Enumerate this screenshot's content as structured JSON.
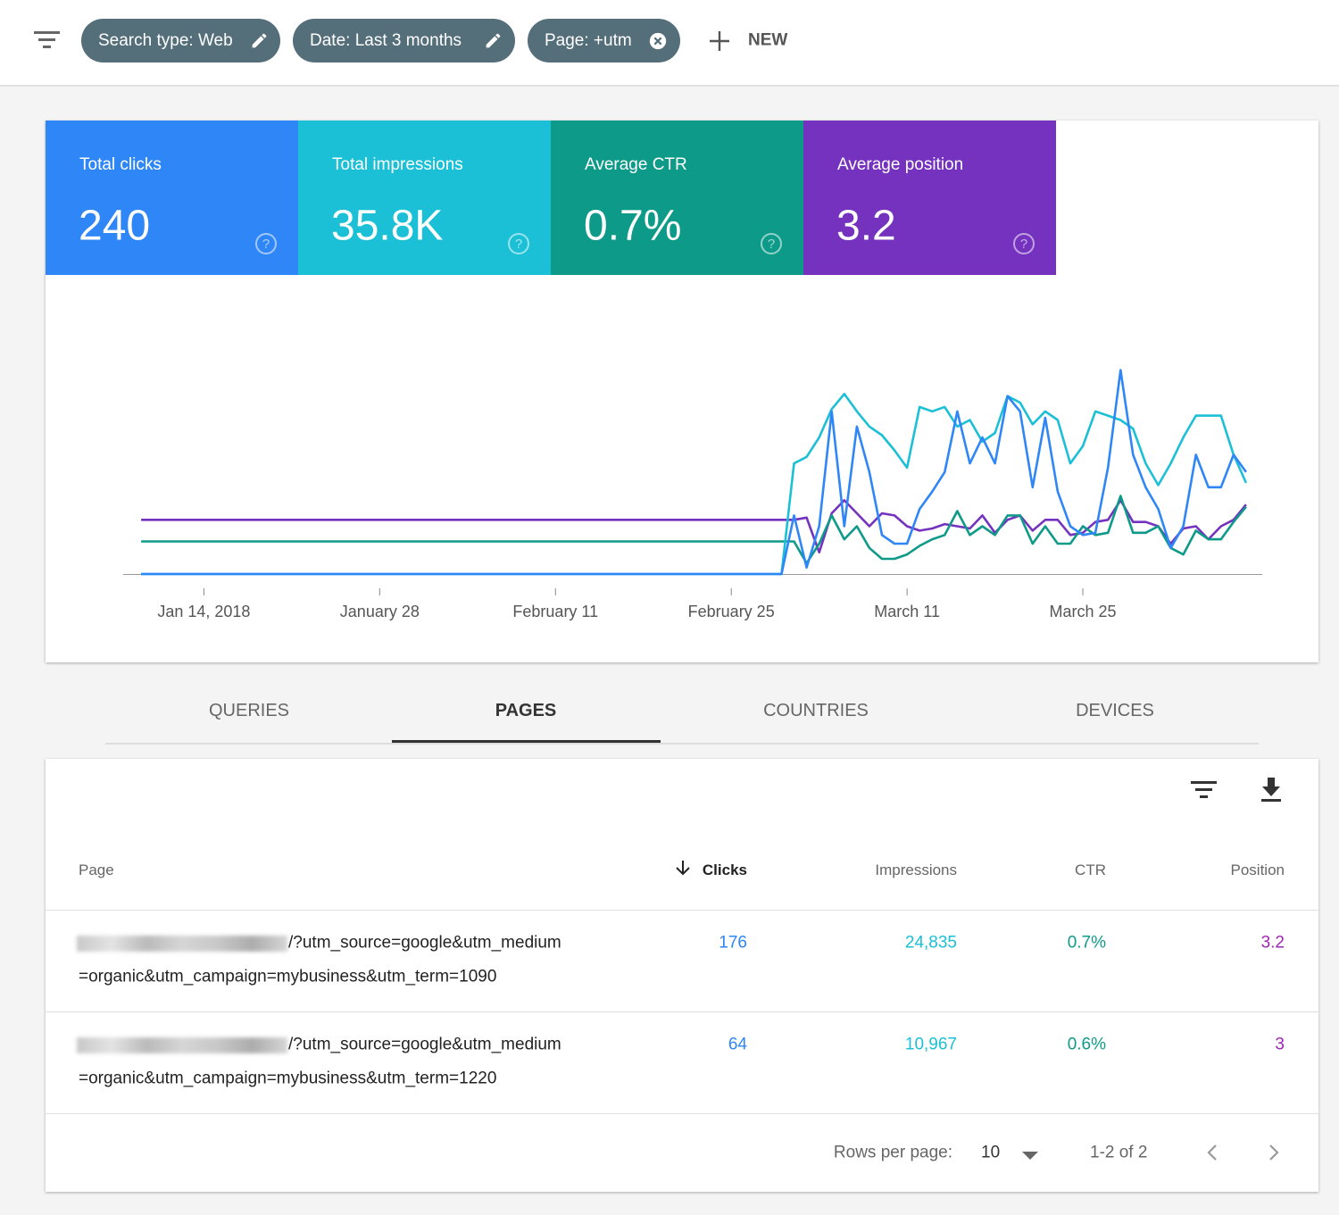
{
  "filters": [
    "Search type: Web",
    "Date: Last 3 months",
    "Page: +utm"
  ],
  "new_button": "NEW",
  "chart_data": {
    "type": "line",
    "x": [
      "2018-01-09",
      "2018-03-01",
      "2018-03-02",
      "2018-03-03",
      "2018-03-04",
      "2018-03-05",
      "2018-03-06",
      "2018-03-07",
      "2018-03-08",
      "2018-03-09",
      "2018-03-10",
      "2018-03-11",
      "2018-03-12",
      "2018-03-13",
      "2018-03-14",
      "2018-03-15",
      "2018-03-16",
      "2018-03-17",
      "2018-03-18",
      "2018-03-19",
      "2018-03-20",
      "2018-03-21",
      "2018-03-22",
      "2018-03-23",
      "2018-03-24",
      "2018-03-25",
      "2018-03-26",
      "2018-03-27",
      "2018-03-28",
      "2018-03-29",
      "2018-03-30",
      "2018-03-31",
      "2018-04-01",
      "2018-04-02",
      "2018-04-03",
      "2018-04-04",
      "2018-04-05",
      "2018-04-06",
      "2018-04-07"
    ],
    "xlim": [
      "2018-01-08",
      "2018-04-08"
    ],
    "xticks": [
      {
        "value": "2018-01-14",
        "label": "Jan 14, 2018"
      },
      {
        "value": "2018-01-28",
        "label": "January 28"
      },
      {
        "value": "2018-02-11",
        "label": "February 11"
      },
      {
        "value": "2018-02-25",
        "label": "February 25"
      },
      {
        "value": "2018-03-11",
        "label": "March 11"
      },
      {
        "value": "2018-03-25",
        "label": "March 25"
      }
    ],
    "ylim": [
      0,
      100
    ],
    "series": [
      {
        "name": "Total clicks",
        "total": "240",
        "color": "#2f86f6",
        "values": [
          0,
          0,
          27,
          3,
          22,
          75,
          22,
          68,
          47,
          18,
          14,
          14,
          30,
          38,
          47,
          75,
          51,
          63,
          51,
          82,
          75,
          40,
          72,
          38,
          22,
          18,
          19,
          49,
          94,
          55,
          40,
          30,
          12,
          22,
          55,
          40,
          40,
          55,
          47
        ]
      },
      {
        "name": "Total impressions",
        "total": "35.8K",
        "color": "#1bc0d6",
        "values": [
          0,
          0,
          51,
          54,
          63,
          76,
          83,
          75,
          68,
          64,
          57,
          49,
          77,
          75,
          77,
          68,
          71,
          61,
          65,
          82,
          79,
          69,
          75,
          71,
          51,
          59,
          75,
          73,
          71,
          67,
          51,
          41,
          51,
          63,
          73,
          73,
          73,
          55,
          42
        ]
      },
      {
        "name": "Average CTR",
        "total": "0.7%",
        "color": "#0e9a89",
        "values": [
          15,
          15,
          15,
          5,
          14,
          27,
          16,
          22,
          12,
          7,
          7,
          9,
          13,
          16,
          18,
          29,
          18,
          22,
          18,
          27,
          27,
          14,
          22,
          14,
          14,
          22,
          18,
          19,
          36,
          19,
          19,
          22,
          12,
          9,
          20,
          16,
          16,
          24,
          31
        ]
      },
      {
        "name": "Average position",
        "total": "3.2",
        "color": "#7432bf",
        "values": [
          25,
          25,
          25,
          26,
          10,
          28,
          34,
          28,
          22,
          28,
          27,
          22,
          20,
          21,
          23,
          22,
          21,
          27,
          19,
          25,
          27,
          20,
          25,
          25,
          18,
          19,
          24,
          25,
          34,
          24,
          24,
          22,
          14,
          21,
          22,
          16,
          22,
          25,
          32
        ]
      }
    ]
  },
  "tabs": [
    "QUERIES",
    "PAGES",
    "COUNTRIES",
    "DEVICES"
  ],
  "active_tab": 1,
  "table": {
    "columns": [
      "Page",
      "Clicks",
      "Impressions",
      "CTR",
      "Position"
    ],
    "rows": [
      [
        [
          "/?utm_source=google&utm_medium",
          "=organic&utm_campaign=mybusiness&utm_term=1090"
        ],
        176,
        "24,835",
        "0.7%",
        3.2
      ],
      [
        [
          "/?utm_source=google&utm_medium",
          "=organic&utm_campaign=mybusiness&utm_term=1220"
        ],
        64,
        "10,967",
        "0.6%",
        3
      ]
    ],
    "rows_per_page_label": "Rows per page:",
    "rows_per_page": 10,
    "range": "1-2 of 2"
  }
}
